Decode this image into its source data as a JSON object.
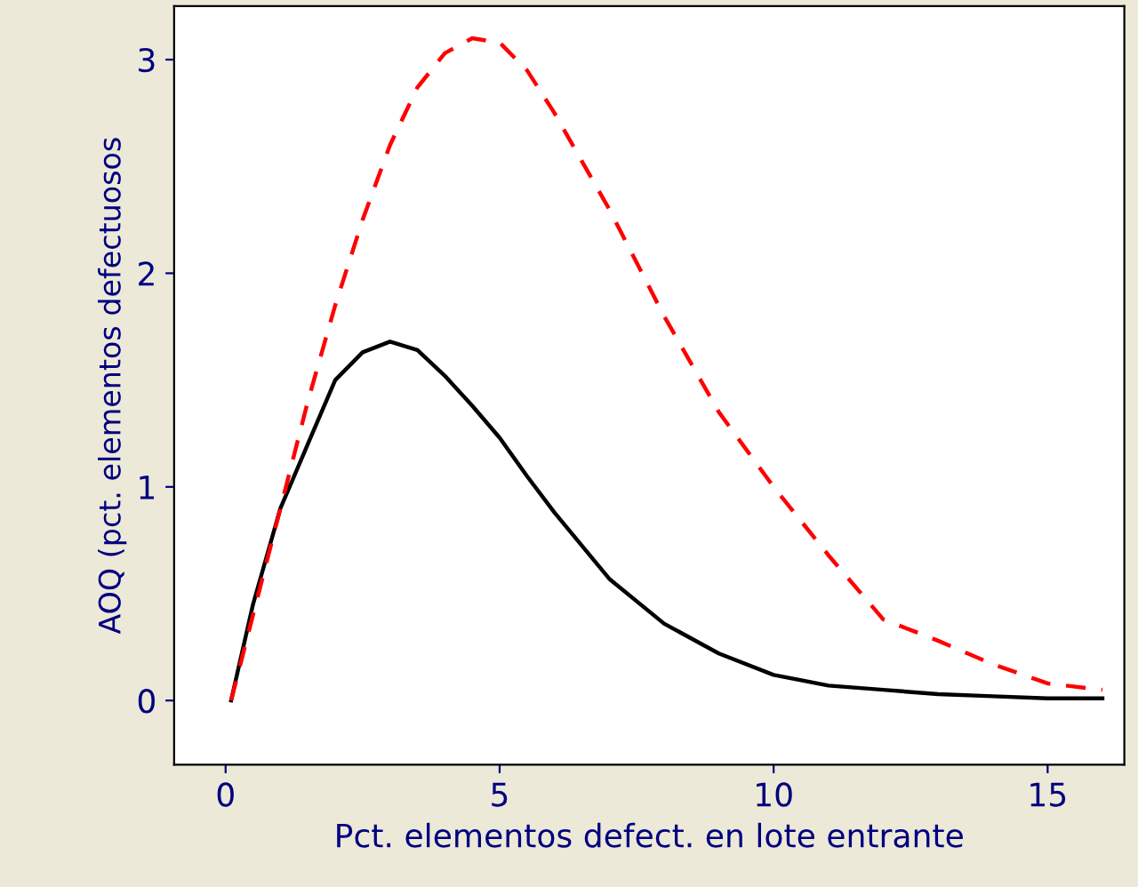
{
  "chart_data": {
    "type": "line",
    "xlabel": "Pct. elementos defect. en lote entrante",
    "ylabel": "AOQ (pct. elementos defectuosos",
    "xlim": [
      -0.94,
      16.4
    ],
    "xticks": [
      0,
      5,
      10,
      15
    ],
    "ylim": [
      -0.3,
      3.25
    ],
    "yticks": [
      0,
      1,
      2,
      3
    ],
    "grid": false,
    "legend": false,
    "marker": "none",
    "series": [
      {
        "color": "#000000",
        "line_style": "solid",
        "x": [
          0.1,
          0.5,
          1,
          1.5,
          2,
          2.5,
          3,
          3.5,
          4,
          4.5,
          5,
          5.5,
          6,
          7,
          8,
          9,
          10,
          11,
          12,
          13,
          14,
          15,
          16
        ],
        "values": [
          0,
          0.45,
          0.9,
          1.2,
          1.5,
          1.63,
          1.68,
          1.64,
          1.52,
          1.38,
          1.23,
          1.05,
          0.88,
          0.57,
          0.36,
          0.22,
          0.12,
          0.07,
          0.05,
          0.03,
          0.02,
          0.01,
          0.01
        ]
      },
      {
        "color": "#ff0000",
        "line_style": "dashed",
        "x": [
          0.1,
          0.5,
          1,
          1.5,
          2,
          2.5,
          3,
          3.5,
          4,
          4.5,
          5,
          5.5,
          6,
          7,
          8,
          9,
          10,
          11,
          12,
          13,
          14,
          15,
          16
        ],
        "values": [
          0,
          0.4,
          0.9,
          1.4,
          1.85,
          2.25,
          2.6,
          2.87,
          3.03,
          3.1,
          3.08,
          2.95,
          2.75,
          2.3,
          1.8,
          1.35,
          1.0,
          0.68,
          0.38,
          0.28,
          0.17,
          0.08,
          0.05
        ]
      }
    ]
  }
}
